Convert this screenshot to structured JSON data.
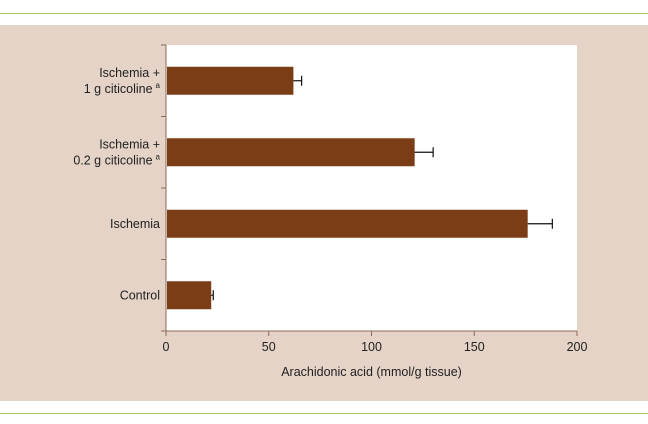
{
  "chart_data": {
    "type": "bar",
    "orientation": "horizontal",
    "categories": [
      {
        "lines": [
          "Ischemia +",
          "1 g citicoline"
        ],
        "superscript": "a"
      },
      {
        "lines": [
          "Ischemia +",
          "0.2 g citicoline"
        ],
        "superscript": "a"
      },
      {
        "lines": [
          "Ischemia"
        ],
        "superscript": ""
      },
      {
        "lines": [
          "Control"
        ],
        "superscript": ""
      }
    ],
    "values": [
      62,
      121,
      176,
      22
    ],
    "errors": [
      4,
      9,
      12,
      1
    ],
    "xlabel": "Arachidonic acid (mmol/g tissue)",
    "xlim": [
      0,
      200
    ],
    "xticks": [
      0,
      50,
      100,
      150,
      200
    ],
    "grid": false,
    "colors": {
      "bar": "#7b3d15",
      "panel": "#e4d3c6",
      "plot_bg": "#ffffff",
      "rule": "#a8c46a",
      "axis": "#8a6a55"
    }
  }
}
